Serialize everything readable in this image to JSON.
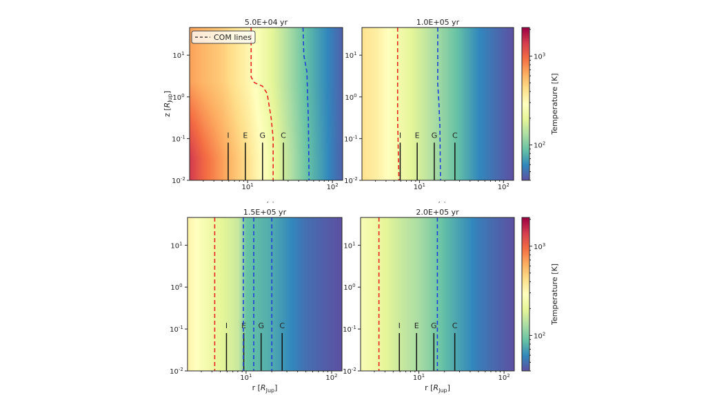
{
  "chart_data": {
    "type": "heatmap",
    "colormap": "Spectral_r",
    "x_scale": "log",
    "y_scale": "log",
    "xlim": [
      2.07,
      132
    ],
    "ylim": [
      0.01,
      46
    ],
    "xlabel": "r [R_Jup]",
    "ylabel": "z [R_Jup]",
    "x_ticks": [
      {
        "value": 10,
        "label": "10^1"
      },
      {
        "value": 100,
        "label": "10^2"
      }
    ],
    "y_ticks": [
      {
        "value": 0.01,
        "label": "10^-2"
      },
      {
        "value": 0.1,
        "label": "10^-1"
      },
      {
        "value": 1,
        "label": "10^0"
      },
      {
        "value": 10,
        "label": "10^1"
      }
    ],
    "colorbar": {
      "label": "Temperature [K]",
      "scale": "log",
      "range": [
        40,
        2100
      ],
      "ticks": [
        {
          "value": 100,
          "label": "10^2"
        },
        {
          "value": 1000,
          "label": "10^3"
        }
      ]
    },
    "legend": {
      "entry": "COM lines",
      "placement": "top-left"
    },
    "moons": [
      {
        "label": "I",
        "r": 5.9
      },
      {
        "label": "E",
        "r": 9.4
      },
      {
        "label": "G",
        "r": 15.0
      },
      {
        "label": "C",
        "r": 26.4
      }
    ],
    "panels": [
      {
        "title": "5.0E+04 yr",
        "r_samples": [
          2,
          3,
          5,
          10,
          20,
          50,
          132
        ],
        "T_midplane": [
          1500,
          1000,
          700,
          420,
          220,
          90,
          45
        ],
        "T_upper": [
          700,
          600,
          500,
          330,
          190,
          85,
          45
        ],
        "com_lines": [
          {
            "color": "#e8231f",
            "points": [
              [
                11,
                46
              ],
              [
                11,
                3
              ],
              [
                12,
                2.2
              ],
              [
                15,
                1.8
              ],
              [
                17,
                1.2
              ],
              [
                19,
                0.3
              ],
              [
                20,
                0.1
              ],
              [
                20,
                0.01
              ]
            ]
          },
          {
            "color": "#1f3fd6",
            "points": [
              [
                45,
                46
              ],
              [
                46,
                10
              ],
              [
                50,
                4
              ],
              [
                51,
                1
              ],
              [
                52,
                0.3
              ],
              [
                53,
                0.01
              ]
            ]
          }
        ]
      },
      {
        "title": "1.0E+05 yr",
        "r_samples": [
          2,
          3,
          5,
          10,
          20,
          50,
          132
        ],
        "T_midplane": [
          420,
          360,
          260,
          170,
          110,
          60,
          40
        ],
        "T_upper": [
          420,
          360,
          260,
          170,
          110,
          60,
          40
        ],
        "com_lines": [
          {
            "color": "#e8231f",
            "points": [
              [
                5.5,
                46
              ],
              [
                5.5,
                0.3
              ],
              [
                5.6,
                0.05
              ],
              [
                5.7,
                0.01
              ]
            ]
          },
          {
            "color": "#1f3fd6",
            "points": [
              [
                16.5,
                46
              ],
              [
                16.5,
                2
              ],
              [
                17,
                0.8
              ],
              [
                17.5,
                0.2
              ],
              [
                17.8,
                0.01
              ]
            ]
          }
        ]
      },
      {
        "title": "1.5E+05 yr",
        "r_samples": [
          2,
          3,
          5,
          8,
          10,
          20,
          50,
          132
        ],
        "T_midplane": [
          350,
          260,
          200,
          160,
          90,
          75,
          50,
          40
        ],
        "T_upper": [
          350,
          260,
          200,
          160,
          90,
          75,
          50,
          40
        ],
        "com_lines": [
          {
            "color": "#e8231f",
            "points": [
              [
                4.3,
                46
              ],
              [
                4.3,
                0.01
              ]
            ]
          },
          {
            "color": "#1f3fd6",
            "points": [
              [
                9.3,
                46
              ],
              [
                9.3,
                0.01
              ]
            ]
          },
          {
            "color": "#1f3fd6",
            "points": [
              [
                12.3,
                46
              ],
              [
                12.3,
                0.01
              ]
            ]
          },
          {
            "color": "#1f3fd6",
            "points": [
              [
                20,
                46
              ],
              [
                20,
                0.01
              ]
            ]
          }
        ]
      },
      {
        "title": "2.0E+05 yr",
        "r_samples": [
          2,
          3,
          5,
          10,
          20,
          50,
          132
        ],
        "T_midplane": [
          260,
          230,
          175,
          130,
          85,
          55,
          40
        ],
        "T_upper": [
          260,
          230,
          175,
          130,
          85,
          55,
          40
        ],
        "com_lines": [
          {
            "color": "#e8231f",
            "points": [
              [
                3.4,
                46
              ],
              [
                3.4,
                0.01
              ]
            ]
          },
          {
            "color": "#1f3fd6",
            "points": [
              [
                16.5,
                46
              ],
              [
                16.5,
                0.01
              ]
            ]
          }
        ]
      }
    ]
  }
}
